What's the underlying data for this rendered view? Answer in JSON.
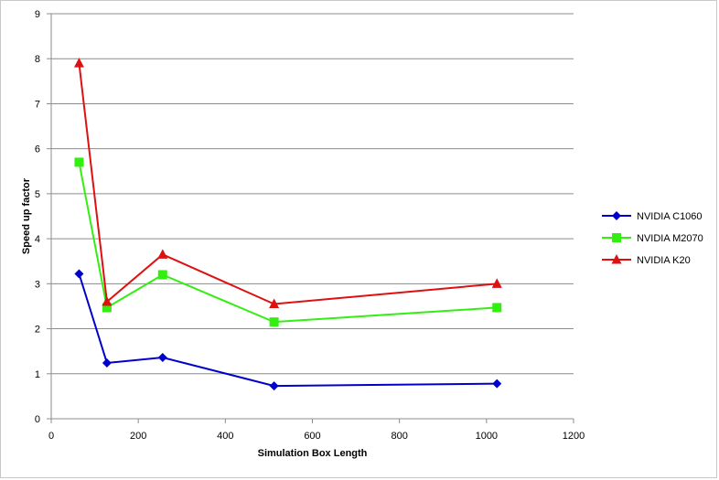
{
  "chart_data": {
    "type": "line",
    "title": "",
    "xlabel": "Simulation  Box Length",
    "ylabel": "Speed up factor",
    "xlim": [
      0,
      1200
    ],
    "ylim": [
      0,
      9
    ],
    "xticks": [
      0,
      200,
      400,
      600,
      800,
      1000,
      1200
    ],
    "yticks": [
      0,
      1,
      2,
      3,
      4,
      5,
      6,
      7,
      8,
      9
    ],
    "grid": "horizontal",
    "legend_position": "right",
    "series": [
      {
        "name": "NVIDIA C1060",
        "color": "#0000cc",
        "marker": "diamond",
        "x": [
          64,
          128,
          256,
          512,
          1024
        ],
        "y": [
          3.22,
          1.24,
          1.36,
          0.73,
          0.78
        ]
      },
      {
        "name": "NVIDIA M2070",
        "color": "#33ee11",
        "marker": "square",
        "x": [
          64,
          128,
          256,
          512,
          1024
        ],
        "y": [
          5.7,
          2.47,
          3.2,
          2.15,
          2.47
        ]
      },
      {
        "name": "NVIDIA K20",
        "color": "#dd1111",
        "marker": "triangle",
        "x": [
          64,
          128,
          256,
          512,
          1024
        ],
        "y": [
          7.9,
          2.6,
          3.65,
          2.55,
          3.0
        ]
      }
    ]
  }
}
